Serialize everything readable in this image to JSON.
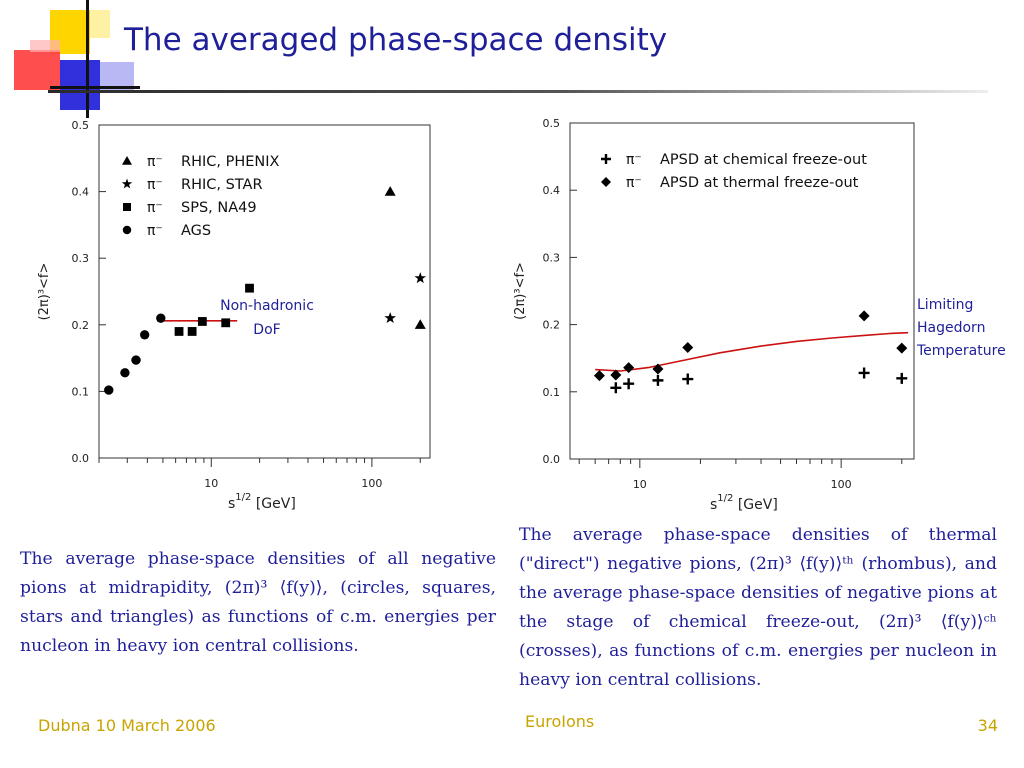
{
  "slide": {
    "title": "The averaged phase-space density",
    "footer_left": "Dubna 10 March 2006",
    "footer_center": "EuroIons",
    "footer_right": "34"
  },
  "annotations": {
    "left_line1": "Non-hadronic",
    "left_line2": "DoF",
    "right_line1": "Limiting",
    "right_line2": "Hagedorn",
    "right_line3": "Temperature"
  },
  "captions": {
    "left": "The average phase-space densities of all negative pions at midrapidity, (2π)³ ⟨f(y)⟩, (circles, squares, stars and triangles) as functions of c.m. energies per nucleon in heavy ion central collisions.",
    "right": "The average phase-space densities of thermal (\"direct\") negative pions, (2π)³ ⟨f(y)⟩ᵗʰ (rhombus), and the average phase-space densities of negative pions at the stage of chemical freeze-out, (2π)³ ⟨f(y)⟩ᶜʰ (crosses), as functions of c.m. energies per nucleon in heavy ion central collisions."
  },
  "colors": {
    "title": "#1f1f99",
    "caption": "#1f1f99",
    "footer": "#c9a400",
    "fit_line": "#cc1111",
    "markers": "#000000"
  },
  "chart_data": [
    {
      "type": "scatter",
      "xscale": "log",
      "xlim": [
        2,
        230
      ],
      "ylim": [
        0.0,
        0.5
      ],
      "yticks": [
        0.0,
        0.1,
        0.2,
        0.3,
        0.4,
        0.5
      ],
      "ytick_labels": [
        "0.0",
        "0.1",
        "0.2",
        "0.3",
        "0.4",
        "0.5"
      ],
      "xticks_major": [
        10,
        100
      ],
      "xtick_labels": [
        "10",
        "100"
      ],
      "xlabel_main": "s",
      "xlabel_sup": "1/2",
      "xlabel_unit": " [GeV]",
      "ylabel": "(2π)³<f>",
      "series": [
        {
          "name": "RHIC, PHENIX",
          "particle": "π⁻",
          "marker": "triangle",
          "x": [
            130,
            200
          ],
          "y": [
            0.4,
            0.2
          ]
        },
        {
          "name": "RHIC, STAR",
          "particle": "π⁻",
          "marker": "star",
          "x": [
            130,
            200
          ],
          "y": [
            0.21,
            0.27
          ]
        },
        {
          "name": "SPS, NA49",
          "particle": "π⁻",
          "marker": "square",
          "x": [
            6.3,
            7.6,
            8.8,
            12.3,
            17.3
          ],
          "y": [
            0.19,
            0.19,
            0.205,
            0.203,
            0.255
          ]
        },
        {
          "name": "AGS",
          "particle": "π⁻",
          "marker": "circle",
          "x": [
            2.3,
            2.9,
            3.4,
            3.85,
            4.85
          ],
          "y": [
            0.102,
            0.128,
            0.147,
            0.185,
            0.21
          ]
        }
      ],
      "lines": [
        {
          "x": [
            4.6,
            14.5
          ],
          "y": [
            0.206,
            0.206
          ],
          "color": "#cc1111"
        }
      ]
    },
    {
      "type": "scatter",
      "xscale": "log",
      "xlim": [
        4.5,
        230
      ],
      "ylim": [
        0.0,
        0.5
      ],
      "yticks": [
        0.0,
        0.1,
        0.2,
        0.3,
        0.4,
        0.5
      ],
      "ytick_labels": [
        "0.0",
        "0.1",
        "0.2",
        "0.3",
        "0.4",
        "0.5"
      ],
      "xticks_major": [
        10,
        100
      ],
      "xtick_labels": [
        "10",
        "100"
      ],
      "xlabel_main": "s",
      "xlabel_sup": "1/2",
      "xlabel_unit": " [GeV]",
      "ylabel": "(2π)³<f>",
      "series": [
        {
          "name": "APSD at chemical freeze-out",
          "particle": "π⁻",
          "marker": "cross",
          "x": [
            7.6,
            8.8,
            12.3,
            17.3,
            130,
            200
          ],
          "y": [
            0.106,
            0.112,
            0.117,
            0.119,
            0.128,
            0.12
          ]
        },
        {
          "name": "APSD at thermal freeze-out",
          "particle": "π⁻",
          "marker": "diamond",
          "x": [
            6.3,
            7.6,
            8.8,
            12.3,
            17.3,
            130,
            200
          ],
          "y": [
            0.124,
            0.125,
            0.136,
            0.134,
            0.166,
            0.213,
            0.165
          ]
        }
      ],
      "lines": [
        {
          "x": [
            6.0,
            8.0,
            11,
            16,
            25,
            40,
            60,
            90,
            130,
            180,
            215
          ],
          "y": [
            0.133,
            0.131,
            0.136,
            0.146,
            0.158,
            0.168,
            0.175,
            0.18,
            0.184,
            0.187,
            0.188
          ],
          "color": "#cc1111"
        }
      ]
    }
  ]
}
